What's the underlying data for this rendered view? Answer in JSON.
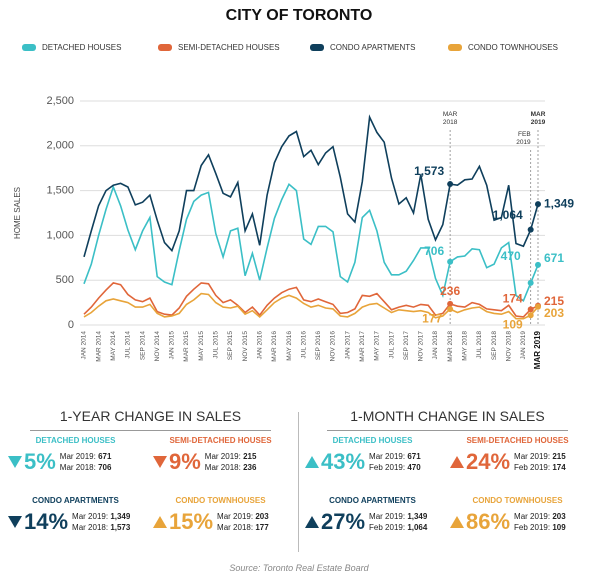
{
  "chart_data": {
    "type": "line",
    "title": "CITY OF TORONTO",
    "ylabel": "HOME SALES",
    "categories": [
      "JAN 2014",
      null,
      "MAR 2014",
      null,
      "MAY 2014",
      null,
      "JUL 2014",
      null,
      "SEP 2014",
      null,
      "NOV 2014",
      null,
      "JAN 2015",
      null,
      "MAR 2015",
      null,
      "MAY 2015",
      null,
      "JUL 2015",
      null,
      "SEP 2015",
      null,
      "NOV 2015",
      null,
      "JAN 2016",
      null,
      "MAR 2016",
      null,
      "MAY 2016",
      null,
      "JUL 2016",
      null,
      "SEP 2016",
      null,
      "NOV 2016",
      null,
      "JAN 2017",
      null,
      "MAR 2017",
      null,
      "MAY 2017",
      null,
      "JUL 2017",
      null,
      "SEP 2017",
      null,
      "NOV 2017",
      null,
      "JAN 2018",
      null,
      "MAR 2018",
      null,
      "MAY 2018",
      null,
      "JUL 2018",
      null,
      "SEP 2018",
      null,
      "NOV 2018",
      null,
      "JAN 2019",
      null,
      "MAR 2019"
    ],
    "series": [
      {
        "name": "DETACHED HOUSES",
        "color": "#3bbfc6",
        "values": [
          460,
          680,
          1000,
          1290,
          1540,
          1330,
          1060,
          840,
          1050,
          1200,
          540,
          480,
          450,
          830,
          1180,
          1380,
          1450,
          1480,
          1020,
          760,
          1050,
          1080,
          550,
          800,
          500,
          860,
          1190,
          1400,
          1570,
          1500,
          960,
          900,
          1100,
          1100,
          1040,
          540,
          480,
          700,
          1200,
          1280,
          1050,
          700,
          560,
          560,
          600,
          720,
          860,
          860,
          520,
          330,
          706,
          760,
          770,
          850,
          840,
          640,
          680,
          860,
          920,
          330,
          270,
          470,
          671
        ],
        "value_labels": [
          null,
          null,
          null,
          null,
          null,
          null,
          null,
          null,
          null,
          null,
          null,
          null,
          null,
          null,
          null,
          null,
          null,
          null,
          null,
          null,
          null,
          null,
          null,
          null,
          null,
          null,
          null,
          null,
          null,
          null,
          null,
          null,
          null,
          null,
          null,
          null,
          null,
          null,
          null,
          null,
          null,
          null,
          null,
          null,
          null,
          null,
          null,
          null,
          null,
          null,
          "706",
          null,
          null,
          null,
          null,
          null,
          null,
          null,
          null,
          null,
          null,
          "470",
          "671"
        ]
      },
      {
        "name": "SEMI-DETACHED HOUSES",
        "color": "#e0663a",
        "values": [
          120,
          200,
          300,
          390,
          470,
          450,
          340,
          280,
          260,
          300,
          150,
          120,
          110,
          190,
          320,
          400,
          470,
          460,
          330,
          250,
          280,
          220,
          140,
          200,
          110,
          220,
          300,
          360,
          400,
          420,
          280,
          260,
          290,
          260,
          230,
          130,
          140,
          180,
          330,
          320,
          350,
          260,
          170,
          200,
          220,
          200,
          230,
          220,
          110,
          130,
          236,
          210,
          200,
          250,
          230,
          180,
          170,
          160,
          220,
          100,
          90,
          174,
          215
        ],
        "value_labels": [
          null,
          null,
          null,
          null,
          null,
          null,
          null,
          null,
          null,
          null,
          null,
          null,
          null,
          null,
          null,
          null,
          null,
          null,
          null,
          null,
          null,
          null,
          null,
          null,
          null,
          null,
          null,
          null,
          null,
          null,
          null,
          null,
          null,
          null,
          null,
          null,
          null,
          null,
          null,
          null,
          null,
          null,
          null,
          null,
          null,
          null,
          null,
          null,
          null,
          null,
          "236",
          null,
          null,
          null,
          null,
          null,
          null,
          null,
          null,
          null,
          null,
          "174",
          "215"
        ]
      },
      {
        "name": "CONDO APARTMENTS",
        "color": "#0f3f5c",
        "values": [
          760,
          1050,
          1330,
          1500,
          1560,
          1580,
          1540,
          1340,
          1370,
          1450,
          1170,
          920,
          830,
          1050,
          1500,
          1500,
          1780,
          1900,
          1690,
          1470,
          1430,
          1590,
          1050,
          1240,
          890,
          1450,
          1810,
          1990,
          2110,
          2160,
          1880,
          1950,
          1790,
          1920,
          1990,
          1650,
          1240,
          1150,
          1600,
          2320,
          2150,
          2040,
          1640,
          1350,
          1420,
          1250,
          1680,
          1180,
          950,
          1120,
          1573,
          1560,
          1620,
          1630,
          1770,
          1560,
          1170,
          1200,
          1560,
          910,
          880,
          1064,
          1349
        ],
        "value_labels": [
          null,
          null,
          null,
          null,
          null,
          null,
          null,
          null,
          null,
          null,
          null,
          null,
          null,
          null,
          null,
          null,
          null,
          null,
          null,
          null,
          null,
          null,
          null,
          null,
          null,
          null,
          null,
          null,
          null,
          null,
          null,
          null,
          null,
          null,
          null,
          null,
          null,
          null,
          null,
          null,
          null,
          null,
          null,
          null,
          null,
          null,
          null,
          null,
          null,
          null,
          "1,573",
          null,
          null,
          null,
          null,
          null,
          null,
          null,
          null,
          null,
          null,
          "1,064",
          "1,349"
        ]
      },
      {
        "name": "CONDO TOWNHOUSES",
        "color": "#e8a43a",
        "values": [
          90,
          140,
          210,
          270,
          290,
          270,
          250,
          200,
          200,
          230,
          130,
          90,
          100,
          130,
          230,
          280,
          350,
          340,
          250,
          200,
          190,
          210,
          120,
          160,
          90,
          170,
          250,
          300,
          330,
          300,
          240,
          200,
          220,
          190,
          180,
          100,
          90,
          130,
          200,
          230,
          240,
          190,
          140,
          170,
          160,
          150,
          160,
          140,
          80,
          100,
          177,
          140,
          170,
          190,
          200,
          150,
          130,
          120,
          150,
          70,
          70,
          109,
          203
        ],
        "value_labels": [
          null,
          null,
          null,
          null,
          null,
          null,
          null,
          null,
          null,
          null,
          null,
          null,
          null,
          null,
          null,
          null,
          null,
          null,
          null,
          null,
          null,
          null,
          null,
          null,
          null,
          null,
          null,
          null,
          null,
          null,
          null,
          null,
          null,
          null,
          null,
          null,
          null,
          null,
          null,
          null,
          null,
          null,
          null,
          null,
          null,
          null,
          null,
          null,
          null,
          null,
          "177",
          null,
          null,
          null,
          null,
          null,
          null,
          null,
          null,
          null,
          null,
          "109",
          "203"
        ]
      }
    ],
    "annotations": [
      "MAR 2018",
      "FEB 2019",
      "MAR 2019"
    ],
    "ylim": [
      0,
      2500
    ],
    "yticks": [
      0,
      500,
      {
        "value": 1000,
        "label": "1,000"
      },
      {
        "value": 1500,
        "label": "1,500"
      },
      {
        "value": 2000,
        "label": "2,000"
      },
      {
        "value": 2500,
        "label": "2,500"
      }
    ],
    "grid": true
  },
  "panels": [
    {
      "title": "1-YEAR CHANGE IN SALES",
      "items": [
        {
          "name": "DETACHED HOUSES",
          "color": "#3bbfc6",
          "direction": "down",
          "change": "5%",
          "lines": [
            [
              "Mar 2019:",
              "671"
            ],
            [
              "Mar 2018:",
              "706"
            ]
          ]
        },
        {
          "name": "SEMI-DETACHED HOUSES",
          "color": "#e0663a",
          "direction": "down",
          "change": "9%",
          "lines": [
            [
              "Mar 2019:",
              "215"
            ],
            [
              "Mar 2018:",
              "236"
            ]
          ]
        },
        {
          "name": "CONDO APARTMENTS",
          "color": "#0f3f5c",
          "direction": "down",
          "change": "14%",
          "lines": [
            [
              "Mar 2019:",
              "1,349"
            ],
            [
              "Mar 2018:",
              "1,573"
            ]
          ]
        },
        {
          "name": "CONDO TOWNHOUSES",
          "color": "#e8a43a",
          "direction": "up",
          "change": "15%",
          "lines": [
            [
              "Mar 2019:",
              "203"
            ],
            [
              "Mar 2018:",
              "177"
            ]
          ]
        }
      ]
    },
    {
      "title": "1-MONTH CHANGE IN SALES",
      "items": [
        {
          "name": "DETACHED HOUSES",
          "color": "#3bbfc6",
          "direction": "up",
          "change": "43%",
          "lines": [
            [
              "Mar 2019:",
              "671"
            ],
            [
              "Feb 2019:",
              "470"
            ]
          ]
        },
        {
          "name": "SEMI-DETACHED HOUSES",
          "color": "#e0663a",
          "direction": "up",
          "change": "24%",
          "lines": [
            [
              "Mar 2019:",
              "215"
            ],
            [
              "Feb 2019:",
              "174"
            ]
          ]
        },
        {
          "name": "CONDO APARTMENTS",
          "color": "#0f3f5c",
          "direction": "up",
          "change": "27%",
          "lines": [
            [
              "Mar 2019:",
              "1,349"
            ],
            [
              "Feb 2019:",
              "1,064"
            ]
          ]
        },
        {
          "name": "CONDO TOWNHOUSES",
          "color": "#e8a43a",
          "direction": "up",
          "change": "86%",
          "lines": [
            [
              "Mar 2019:",
              "203"
            ],
            [
              "Feb 2019:",
              "109"
            ]
          ]
        }
      ]
    }
  ],
  "source": "Source: Toronto Real Estate Board"
}
